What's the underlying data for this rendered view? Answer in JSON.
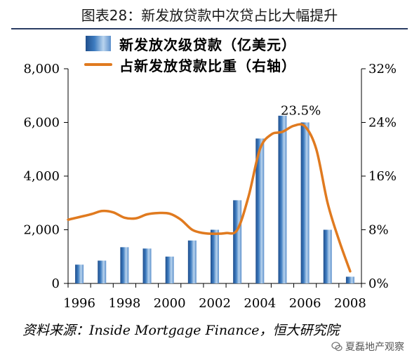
{
  "title": "图表28：新发放贷款中次贷占比大幅提升",
  "legend": {
    "bars": "新发放次级贷款（亿美元）",
    "line": "占新发放贷款比重（右轴）"
  },
  "source": "资料来源：Inside Mortgage Finance，恒大研究院",
  "watermark": "夏磊地产观察",
  "colors": {
    "bar": "#3e7cc0",
    "line": "#e07a1f",
    "title_rule": "#2b3d63"
  },
  "chart_data": {
    "type": "bar",
    "title": "",
    "left_axis": {
      "ylim": [
        0,
        8000
      ],
      "ticks": [
        "8,000",
        "6,000",
        "4,000",
        "2,000",
        "0"
      ]
    },
    "right_axis": {
      "ylim": [
        0,
        32
      ],
      "ticks": [
        "32%",
        "24%",
        "16%",
        "8%",
        "0%"
      ]
    },
    "x_ticks": [
      "1996",
      "1998",
      "2000",
      "2002",
      "2004",
      "2006",
      "2008"
    ],
    "categories": [
      1996,
      1997,
      1998,
      1999,
      2000,
      2001,
      2002,
      2003,
      2004,
      2005,
      2006,
      2007,
      2008
    ],
    "series": [
      {
        "name": "新发放次级贷款（亿美元）",
        "type": "bar",
        "axis": "left",
        "values": [
          700,
          850,
          1350,
          1300,
          1000,
          1600,
          2000,
          3100,
          5400,
          6250,
          6000,
          2000,
          250
        ]
      },
      {
        "name": "占新发放贷款比重（右轴）",
        "type": "line",
        "axis": "right",
        "x": [
          1995.5,
          1996.5,
          1997.0,
          1997.5,
          1998.0,
          1998.5,
          1999.0,
          1999.5,
          2000.0,
          2000.5,
          2001.0,
          2001.5,
          2002.0,
          2002.5,
          2003.0,
          2003.5,
          2004.0,
          2004.5,
          2005.0,
          2005.5,
          2006.0,
          2006.5,
          2007.0,
          2007.5,
          2008.0
        ],
        "values": [
          9.5,
          10.3,
          10.8,
          10.6,
          9.8,
          9.7,
          10.3,
          10.5,
          10.4,
          9.5,
          8.0,
          7.5,
          7.4,
          7.5,
          8.0,
          13.0,
          20.0,
          22.2,
          22.6,
          23.5,
          23.4,
          20.0,
          12.0,
          6.5,
          1.8
        ]
      }
    ],
    "annotations": [
      {
        "text": "23.5%",
        "x": 2006,
        "y_right": 23.5
      }
    ],
    "grid": false,
    "legend_position": "top-left"
  }
}
